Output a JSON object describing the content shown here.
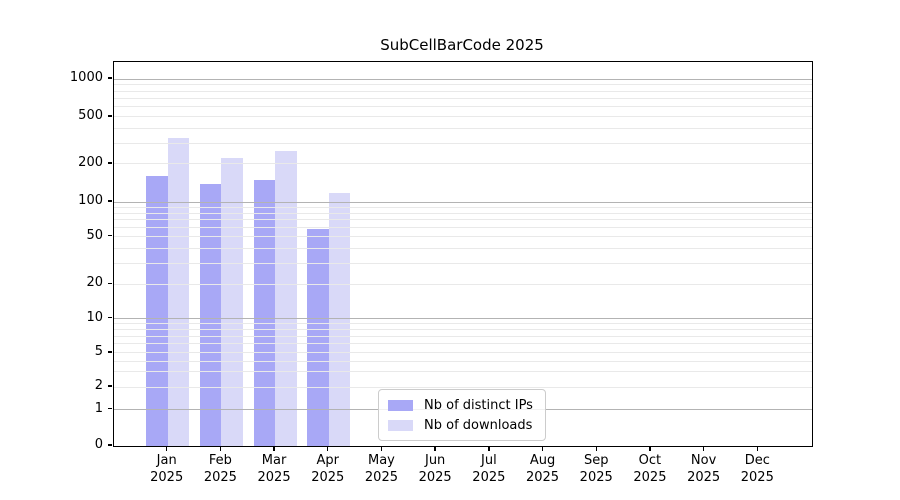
{
  "chart_data": {
    "type": "bar",
    "title": "SubCellBarCode 2025",
    "categories": [
      "Jan 2025",
      "Feb 2025",
      "Mar 2025",
      "Apr 2025",
      "May 2025",
      "Jun 2025",
      "Jul 2025",
      "Aug 2025",
      "Sep 2025",
      "Oct 2025",
      "Nov 2025",
      "Dec 2025"
    ],
    "x_months": [
      "Jan",
      "Feb",
      "Mar",
      "Apr",
      "May",
      "Jun",
      "Jul",
      "Aug",
      "Sep",
      "Oct",
      "Nov",
      "Dec"
    ],
    "x_year": "2025",
    "series": [
      {
        "name": "Nb of distinct IPs",
        "color": "#a8a8f6",
        "values": [
          160,
          140,
          150,
          58,
          0,
          0,
          0,
          0,
          0,
          0,
          0,
          0
        ]
      },
      {
        "name": "Nb of downloads",
        "color": "#d9d9f8",
        "values": [
          335,
          225,
          258,
          118,
          0,
          0,
          0,
          0,
          0,
          0,
          0,
          0
        ]
      }
    ],
    "xlabel": "",
    "ylabel": "",
    "y_scale": "log-with-zero",
    "y_ticks": [
      0,
      1,
      2,
      5,
      10,
      20,
      50,
      100,
      200,
      500,
      1000
    ],
    "ylim": [
      0,
      1400
    ],
    "grid": true,
    "legend_position": "lower center",
    "colors": {
      "axis": "#000000",
      "major_grid": "#b3b3b3",
      "minor_grid": "#e9e9e9",
      "background": "#ffffff"
    }
  }
}
